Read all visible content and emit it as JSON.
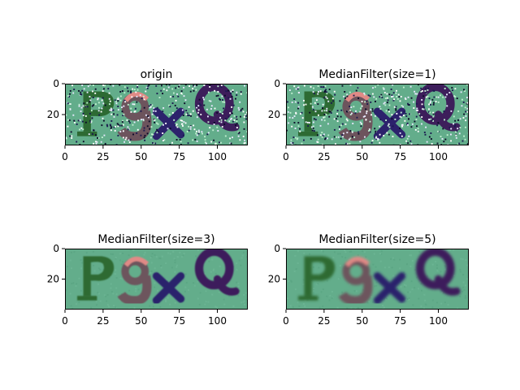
{
  "chart_data": [
    {
      "type": "image",
      "title": "origin",
      "noise": "salt-and-pepper",
      "xlim": [
        0,
        120
      ],
      "ylim": [
        40,
        0
      ],
      "xticks": [
        0,
        25,
        50,
        75,
        100
      ],
      "yticks": [
        0,
        20
      ],
      "xticklabels": [
        "0",
        "25",
        "50",
        "75",
        "100"
      ],
      "yticklabels": [
        "0",
        "20"
      ]
    },
    {
      "type": "image",
      "title": "MedianFilter(size=1)",
      "noise": "salt-and-pepper",
      "xlim": [
        0,
        120
      ],
      "ylim": [
        40,
        0
      ],
      "xticks": [
        0,
        25,
        50,
        75,
        100
      ],
      "yticks": [
        0,
        20
      ],
      "xticklabels": [
        "0",
        "25",
        "50",
        "75",
        "100"
      ],
      "yticklabels": [
        "0",
        "20"
      ]
    },
    {
      "type": "image",
      "title": "MedianFilter(size=3)",
      "noise": "smoothed",
      "xlim": [
        0,
        120
      ],
      "ylim": [
        40,
        0
      ],
      "xticks": [
        0,
        25,
        50,
        75,
        100
      ],
      "yticks": [
        0,
        20
      ],
      "xticklabels": [
        "0",
        "25",
        "50",
        "75",
        "100"
      ],
      "yticklabels": [
        "0",
        "20"
      ]
    },
    {
      "type": "image",
      "title": "MedianFilter(size=5)",
      "noise": "smoothed",
      "xlim": [
        0,
        120
      ],
      "ylim": [
        40,
        0
      ],
      "xticks": [
        0,
        25,
        50,
        75,
        100
      ],
      "yticks": [
        0,
        20
      ],
      "xticklabels": [
        "0",
        "25",
        "50",
        "75",
        "100"
      ],
      "yticklabels": [
        "0",
        "20"
      ]
    }
  ],
  "captcha": {
    "letters": [
      "P",
      "g",
      "x",
      "Q"
    ],
    "colors": {
      "background": "#63ad8b",
      "letter_p": "#2d6a33",
      "letter_g": "#6d545d",
      "letter_g_highlight": "#e08a86",
      "letter_x": "#2c226c",
      "letter_q": "#3d1e5b"
    }
  }
}
